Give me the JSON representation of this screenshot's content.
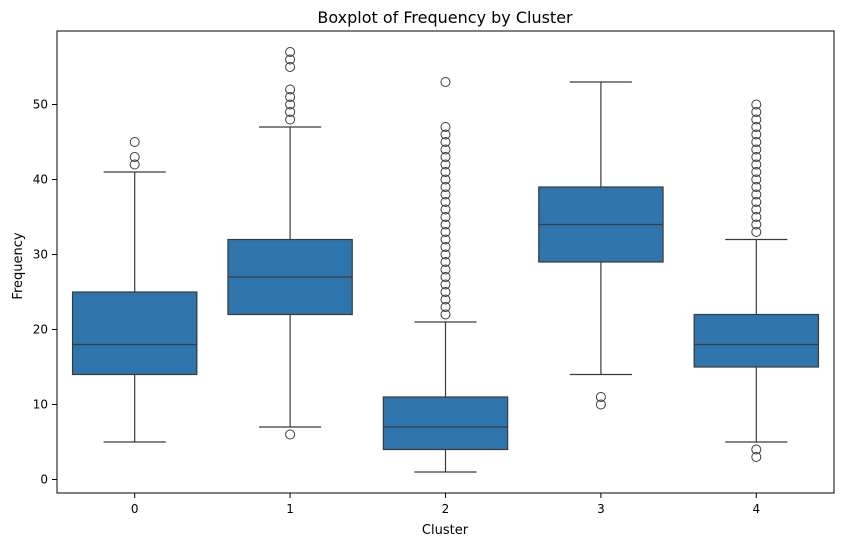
{
  "chart_data": {
    "type": "boxplot",
    "title": "Boxplot of Frequency by Cluster",
    "xlabel": "Cluster",
    "ylabel": "Frequency",
    "ylim": [
      -1.8,
      59.8
    ],
    "yticks": [
      0,
      10,
      20,
      30,
      40,
      50
    ],
    "grid": false,
    "legend": "none",
    "box_color": "#2e75ad",
    "line_color": "#3a3a3a",
    "categories": [
      "0",
      "1",
      "2",
      "3",
      "4"
    ],
    "boxes": [
      {
        "category": "0",
        "whisker_low": 5,
        "q1": 14,
        "median": 18,
        "q3": 25,
        "whisker_high": 41,
        "outliers": [
          42,
          43,
          45
        ]
      },
      {
        "category": "1",
        "whisker_low": 7,
        "q1": 22,
        "median": 27,
        "q3": 32,
        "whisker_high": 47,
        "outliers": [
          6,
          48,
          49,
          50,
          51,
          52,
          55,
          56,
          57
        ]
      },
      {
        "category": "2",
        "whisker_low": 1,
        "q1": 4,
        "median": 7,
        "q3": 11,
        "whisker_high": 21,
        "outliers": [
          22,
          23,
          24,
          25,
          26,
          27,
          28,
          29,
          30,
          31,
          32,
          33,
          34,
          35,
          36,
          37,
          38,
          39,
          40,
          41,
          42,
          43,
          44,
          45,
          46,
          47,
          53
        ]
      },
      {
        "category": "3",
        "whisker_low": 14,
        "q1": 29,
        "median": 34,
        "q3": 39,
        "whisker_high": 53,
        "outliers": [
          10,
          11
        ]
      },
      {
        "category": "4",
        "whisker_low": 5,
        "q1": 15,
        "median": 18,
        "q3": 22,
        "whisker_high": 32,
        "outliers": [
          3,
          4,
          33,
          34,
          35,
          36,
          37,
          38,
          39,
          40,
          41,
          42,
          43,
          44,
          45,
          46,
          47,
          48,
          49,
          50
        ]
      }
    ]
  }
}
